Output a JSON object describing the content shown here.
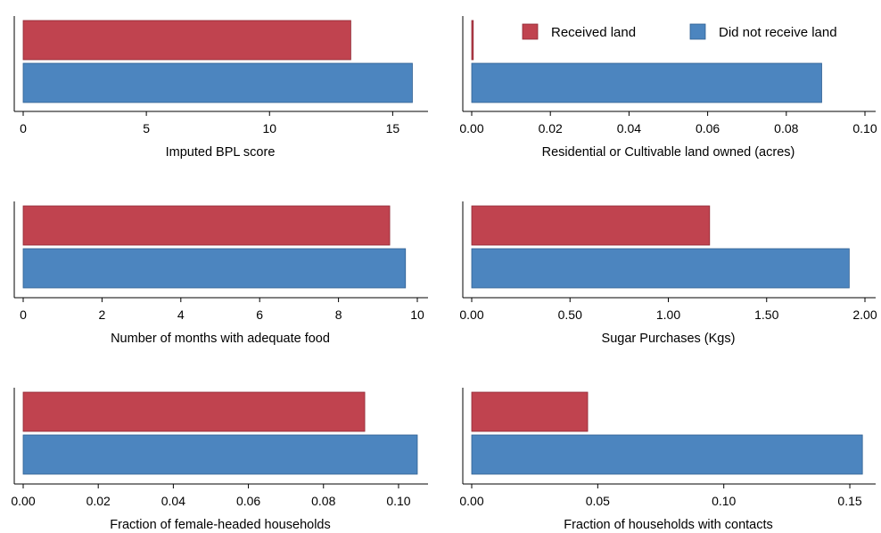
{
  "colors": {
    "received": "#c0434f",
    "not_received": "#4c85bf"
  },
  "legend": {
    "placement": "top-right of upper-right panel",
    "entries": [
      {
        "label": "Received land",
        "color": "#c0434f"
      },
      {
        "label": "Did not receive land",
        "color": "#4c85bf"
      }
    ]
  },
  "chart_data": [
    {
      "type": "bar",
      "orientation": "horizontal",
      "xlabel": "Imputed BPL score",
      "xlim": [
        0,
        16
      ],
      "ticks": [
        0,
        5,
        10,
        15
      ],
      "tick_labels": [
        "0",
        "5",
        "10",
        "15"
      ],
      "series": [
        {
          "name": "Received land",
          "value": 13.3
        },
        {
          "name": "Did not receive land",
          "value": 15.8
        }
      ]
    },
    {
      "type": "bar",
      "orientation": "horizontal",
      "xlabel": "Residential or Cultivable land owned (acres)",
      "xlim": [
        0,
        0.1
      ],
      "ticks": [
        0,
        0.02,
        0.04,
        0.06,
        0.08,
        0.1
      ],
      "tick_labels": [
        "0.00",
        "0.02",
        "0.04",
        "0.06",
        "0.08",
        "0.10"
      ],
      "series": [
        {
          "name": "Received land",
          "value": 0.0004
        },
        {
          "name": "Did not receive land",
          "value": 0.089
        }
      ]
    },
    {
      "type": "bar",
      "orientation": "horizontal",
      "xlabel": "Number of months with adequate food",
      "xlim": [
        0,
        10
      ],
      "ticks": [
        0,
        2,
        4,
        6,
        8,
        10
      ],
      "tick_labels": [
        "0",
        "2",
        "4",
        "6",
        "8",
        "10"
      ],
      "series": [
        {
          "name": "Received land",
          "value": 9.3
        },
        {
          "name": "Did not receive land",
          "value": 9.7
        }
      ]
    },
    {
      "type": "bar",
      "orientation": "horizontal",
      "xlabel": "Sugar Purchases (Kgs)",
      "xlim": [
        0,
        2
      ],
      "ticks": [
        0,
        0.5,
        1,
        1.5,
        2
      ],
      "tick_labels": [
        "0.00",
        "0.50",
        "1.00",
        "1.50",
        "2.00"
      ],
      "series": [
        {
          "name": "Received land",
          "value": 1.21
        },
        {
          "name": "Did not receive land",
          "value": 1.92
        }
      ]
    },
    {
      "type": "bar",
      "orientation": "horizontal",
      "xlabel": "Fraction of female-headed households",
      "xlim": [
        0,
        0.105
      ],
      "ticks": [
        0,
        0.02,
        0.04,
        0.06,
        0.08,
        0.1
      ],
      "tick_labels": [
        "0.00",
        "0.02",
        "0.04",
        "0.06",
        "0.08",
        "0.10"
      ],
      "series": [
        {
          "name": "Received land",
          "value": 0.091
        },
        {
          "name": "Did not receive land",
          "value": 0.105
        }
      ]
    },
    {
      "type": "bar",
      "orientation": "horizontal",
      "xlabel": "Fraction of households with contacts",
      "xlim": [
        0,
        0.156
      ],
      "ticks": [
        0,
        0.05,
        0.1,
        0.15
      ],
      "tick_labels": [
        "0.00",
        "0.05",
        "0.10",
        "0.15"
      ],
      "series": [
        {
          "name": "Received land",
          "value": 0.046
        },
        {
          "name": "Did not receive land",
          "value": 0.155
        }
      ]
    }
  ]
}
